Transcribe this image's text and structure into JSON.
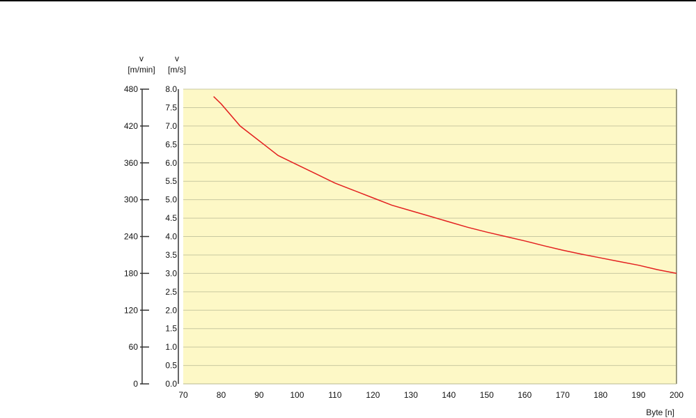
{
  "chart_data": {
    "type": "line",
    "xlabel": "Byte [n]",
    "ylabel_left_symbol": "v",
    "ylabel_left_unit": "[m/min]",
    "ylabel_right_symbol": "v",
    "ylabel_right_unit": "[m/s]",
    "xlim": [
      70,
      200
    ],
    "ylim": [
      0,
      480
    ],
    "x_ticks": [
      "70",
      "80",
      "90",
      "100",
      "110",
      "120",
      "130",
      "140",
      "150",
      "160",
      "170",
      "180",
      "190",
      "200"
    ],
    "y_left_ticks": [
      "0",
      "60",
      "120",
      "180",
      "240",
      "300",
      "360",
      "420",
      "480"
    ],
    "y_right_ticks": [
      "0.0",
      "0.5",
      "1.0",
      "1.5",
      "2.0",
      "2.5",
      "3.0",
      "3.5",
      "4.0",
      "4.5",
      "5.0",
      "5.5",
      "6.0",
      "6.5",
      "7.0",
      "7.5",
      "8.0"
    ],
    "grid": true,
    "colors": {
      "plot_background": "#fdf8c6",
      "grid": "#c8c8a0",
      "line": "#e32020",
      "axis": "#333333"
    },
    "series": [
      {
        "x": [
          78,
          80,
          85,
          90,
          95,
          100,
          105,
          110,
          115,
          120,
          125,
          130,
          135,
          140,
          145,
          150,
          155,
          160,
          165,
          170,
          175,
          180,
          185,
          190,
          195,
          200
        ],
        "y": [
          7.8,
          7.6,
          7.0,
          6.6,
          6.2,
          5.95,
          5.7,
          5.45,
          5.25,
          5.05,
          4.85,
          4.7,
          4.55,
          4.4,
          4.25,
          4.12,
          4.0,
          3.88,
          3.75,
          3.63,
          3.52,
          3.42,
          3.32,
          3.22,
          3.1,
          3.0
        ]
      }
    ]
  }
}
